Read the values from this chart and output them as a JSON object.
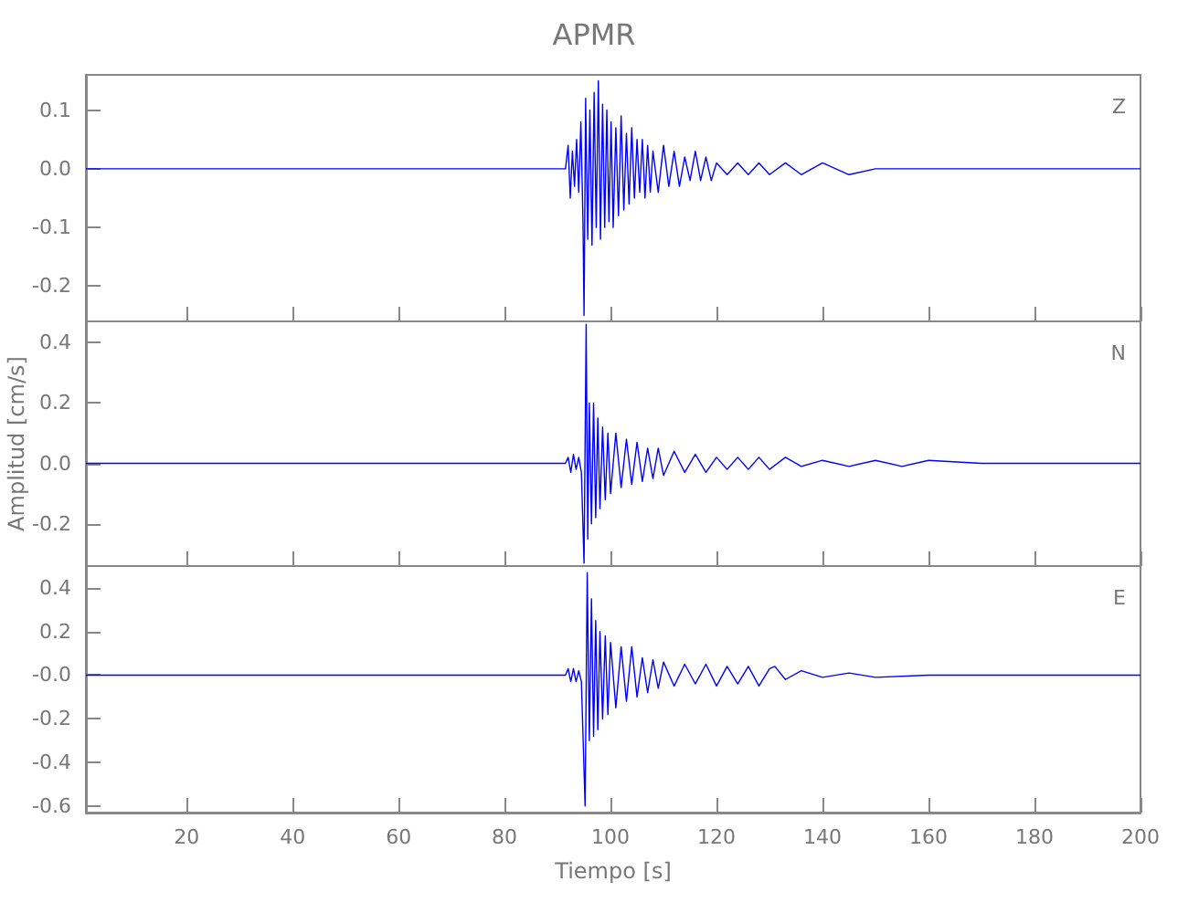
{
  "chart_data": [
    {
      "type": "line",
      "title": "APMR",
      "annotations": [
        "Z"
      ],
      "xlim": [
        1,
        200
      ],
      "xticks": [
        20,
        40,
        60,
        80,
        100,
        120,
        140,
        160,
        180,
        200
      ],
      "ylim": [
        -0.26,
        0.16
      ],
      "yticks": [
        {
          "value": -0.2,
          "label": "-0.2"
        },
        {
          "value": -0.1,
          "label": "-0.1"
        },
        {
          "value": 0,
          "label": "0.0"
        },
        {
          "value": 0.1,
          "label": "0.1"
        }
      ],
      "tick_labels": "y",
      "grid": false,
      "marker": "none",
      "line_style": "solid",
      "series": [
        {
          "color": "#0000ff",
          "x": [
            1,
            91.5,
            92,
            92.4,
            92.8,
            93.2,
            93.6,
            94,
            94.4,
            94.8,
            95,
            95.3,
            95.7,
            96.1,
            96.5,
            96.9,
            97.3,
            97.7,
            98.1,
            98.5,
            98.9,
            99.3,
            99.7,
            100.1,
            100.5,
            101,
            101.5,
            102,
            102.5,
            103,
            103.5,
            104,
            104.5,
            105,
            105.5,
            106,
            106.5,
            107,
            107.5,
            108,
            109,
            110,
            111,
            112,
            113,
            114,
            115,
            116,
            117,
            118,
            119,
            120,
            122,
            124,
            126,
            128,
            130,
            133,
            136,
            140,
            145,
            150,
            160,
            170,
            180,
            190,
            200
          ],
          "values": [
            0,
            0,
            0.04,
            -0.05,
            0.03,
            -0.03,
            0.05,
            -0.04,
            0.08,
            -0.09,
            -0.25,
            0.12,
            -0.12,
            0.1,
            -0.13,
            0.13,
            -0.1,
            0.15,
            -0.12,
            0.11,
            -0.1,
            0.1,
            -0.09,
            0.08,
            -0.1,
            0.07,
            -0.08,
            0.09,
            -0.07,
            0.06,
            -0.06,
            0.07,
            -0.05,
            0.05,
            -0.04,
            0.05,
            -0.05,
            0.04,
            -0.04,
            0.03,
            -0.04,
            0.04,
            -0.03,
            0.03,
            -0.03,
            0.02,
            -0.02,
            0.03,
            -0.02,
            0.02,
            -0.02,
            0.01,
            -0.01,
            0.01,
            -0.01,
            0.01,
            -0.01,
            0.01,
            -0.01,
            0.01,
            -0.01,
            0,
            0,
            0,
            0,
            0,
            0
          ]
        }
      ]
    },
    {
      "type": "line",
      "ylabel": "Amplitud [cm/s]",
      "annotations": [
        "N"
      ],
      "xlim": [
        1,
        200
      ],
      "xticks": [
        20,
        40,
        60,
        80,
        100,
        120,
        140,
        160,
        180,
        200
      ],
      "ylim": [
        -0.34,
        0.47
      ],
      "yticks": [
        {
          "value": -0.2,
          "label": "-0.2"
        },
        {
          "value": 0,
          "label": "0.0"
        },
        {
          "value": 0.2,
          "label": "0.2"
        },
        {
          "value": 0.4,
          "label": "0.4"
        }
      ],
      "tick_labels": "y",
      "grid": false,
      "marker": "none",
      "line_style": "solid",
      "series": [
        {
          "color": "#0000ff",
          "x": [
            1,
            91.5,
            92,
            92.5,
            93,
            93.5,
            94,
            94.5,
            95,
            95.4,
            95.7,
            96,
            96.4,
            96.8,
            97.2,
            97.6,
            98,
            98.5,
            99,
            99.5,
            100,
            101,
            102,
            103,
            104,
            105,
            106,
            107,
            108,
            109,
            110,
            112,
            114,
            116,
            118,
            120,
            122,
            124,
            126,
            128,
            130,
            133,
            136,
            140,
            145,
            150,
            155,
            160,
            170,
            180,
            190,
            200
          ],
          "values": [
            0,
            0,
            0.02,
            -0.03,
            0.03,
            -0.02,
            0.02,
            -0.03,
            -0.33,
            0.46,
            -0.25,
            0.2,
            -0.2,
            0.2,
            -0.18,
            0.15,
            -0.15,
            0.12,
            -0.12,
            0.1,
            -0.1,
            0.1,
            -0.08,
            0.08,
            -0.07,
            0.07,
            -0.06,
            0.05,
            -0.05,
            0.05,
            -0.04,
            0.04,
            -0.03,
            0.03,
            -0.03,
            0.02,
            -0.02,
            0.02,
            -0.02,
            0.02,
            -0.02,
            0.02,
            -0.01,
            0.01,
            -0.01,
            0.01,
            -0.01,
            0.01,
            0,
            0,
            0,
            0
          ]
        }
      ]
    },
    {
      "type": "line",
      "xlabel": "Tiempo [s]",
      "annotations": [
        "E"
      ],
      "xlim": [
        1,
        200
      ],
      "xticks": [
        20,
        40,
        60,
        80,
        100,
        120,
        140,
        160,
        180,
        200
      ],
      "ylim": [
        -0.63,
        0.5
      ],
      "yticks": [
        {
          "value": -0.6,
          "label": "-0.6"
        },
        {
          "value": -0.4,
          "label": "-0.4"
        },
        {
          "value": -0.2,
          "label": "-0.2"
        },
        {
          "value": 0,
          "label": "-0.0"
        },
        {
          "value": 0.2,
          "label": "0.2"
        },
        {
          "value": 0.4,
          "label": "0.4"
        }
      ],
      "grid": false,
      "marker": "none",
      "line_style": "solid",
      "series": [
        {
          "color": "#0000ff",
          "x": [
            1,
            91.5,
            92,
            92.5,
            93,
            93.5,
            94,
            94.5,
            95.2,
            95.6,
            96,
            96.4,
            96.8,
            97.2,
            97.6,
            98,
            98.5,
            99,
            99.5,
            100,
            101,
            102,
            103,
            104,
            105,
            106,
            107,
            108,
            109,
            110,
            112,
            114,
            116,
            118,
            120,
            122,
            124,
            126,
            128,
            130,
            131,
            133,
            136,
            140,
            145,
            150,
            160,
            170,
            180,
            190,
            200
          ],
          "values": [
            0,
            0,
            0.03,
            -0.03,
            0.03,
            -0.03,
            0.02,
            -0.03,
            -0.6,
            0.47,
            -0.3,
            0.35,
            -0.28,
            0.25,
            -0.25,
            0.2,
            -0.2,
            0.18,
            -0.18,
            0.15,
            -0.15,
            0.13,
            -0.12,
            0.13,
            -0.1,
            0.08,
            -0.08,
            0.07,
            -0.06,
            0.06,
            -0.05,
            0.05,
            -0.04,
            0.05,
            -0.05,
            0.04,
            -0.04,
            0.04,
            -0.05,
            0.03,
            0.04,
            -0.02,
            0.02,
            -0.01,
            0.01,
            -0.01,
            0,
            0,
            0,
            0,
            0
          ]
        }
      ]
    }
  ]
}
